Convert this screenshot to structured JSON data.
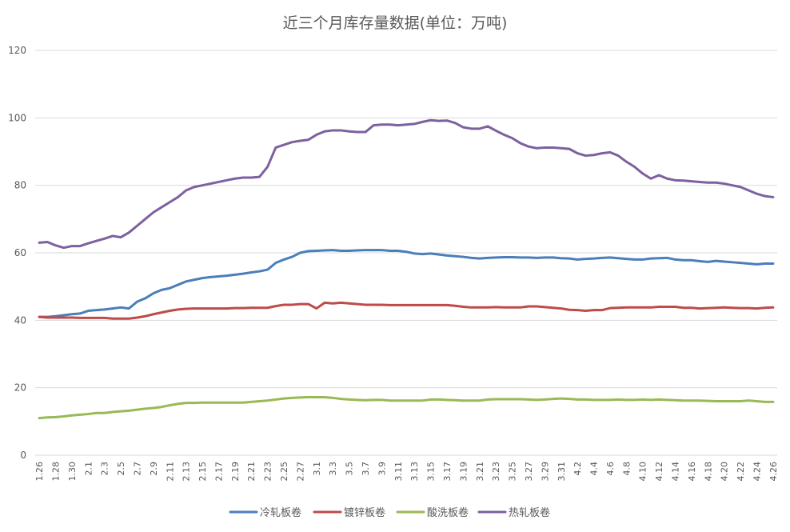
{
  "chart_data": {
    "type": "line",
    "title": "近三个月库存量数据(单位：万吨)",
    "xlabel": "",
    "ylabel": "",
    "ylim": [
      0,
      120
    ],
    "yticks": [
      0,
      20,
      40,
      60,
      80,
      100,
      120
    ],
    "grid": true,
    "legend_position": "bottom",
    "x": [
      "1.26",
      "1.27",
      "1.28",
      "1.29",
      "1.30",
      "1.31",
      "2.1",
      "2.2",
      "2.3",
      "2.4",
      "2.5",
      "2.6",
      "2.7",
      "2.8",
      "2.9",
      "2.10",
      "2.11",
      "2.12",
      "2.13",
      "2.14",
      "2.15",
      "2.16",
      "2.17",
      "2.18",
      "2.19",
      "2.20",
      "2.21",
      "2.22",
      "2.23",
      "2.24",
      "2.25",
      "2.26",
      "2.27",
      "2.28",
      "3.1",
      "3.2",
      "3.3",
      "3.4",
      "3.5",
      "3.6",
      "3.7",
      "3.8",
      "3.9",
      "3.10",
      "3.11",
      "3.12",
      "3.13",
      "3.14",
      "3.15",
      "3.16",
      "3.17",
      "3.18",
      "3.19",
      "3.20",
      "3.21",
      "3.22",
      "3.23",
      "3.24",
      "3.25",
      "3.26",
      "3.27",
      "3.28",
      "3.29",
      "3.30",
      "3.31",
      "4.1",
      "4.2",
      "4.3",
      "4.4",
      "4.5",
      "4.6",
      "4.7",
      "4.8",
      "4.9",
      "4.10",
      "4.11",
      "4.12",
      "4.13",
      "4.14",
      "4.15",
      "4.16",
      "4.17",
      "4.18",
      "4.19",
      "4.20",
      "4.21",
      "4.22",
      "4.23",
      "4.24",
      "4.25",
      "4.26"
    ],
    "xtick_labels": [
      "1.26",
      "1.28",
      "1.30",
      "2.1",
      "2.3",
      "2.5",
      "2.7",
      "2.9",
      "2.11",
      "2.13",
      "2.15",
      "2.17",
      "2.19",
      "2.21",
      "2.23",
      "2.25",
      "2.27",
      "3.1",
      "3.3",
      "3.5",
      "3.7",
      "3.9",
      "3.11",
      "3.13",
      "3.15",
      "3.17",
      "3.19",
      "3.21",
      "3.23",
      "3.25",
      "3.27",
      "3.29",
      "3.31",
      "4.2",
      "4.4",
      "4.6",
      "4.8",
      "4.10",
      "4.12",
      "4.14",
      "4.16",
      "4.18",
      "4.20",
      "4.22",
      "4.24",
      "4.26"
    ],
    "series": [
      {
        "name": "冷轧板卷",
        "color": "#4a7ebb",
        "values": [
          41,
          41,
          41.2,
          41.5,
          41.8,
          42,
          42.8,
          43,
          43.2,
          43.5,
          43.8,
          43.5,
          45.5,
          46.5,
          48,
          49,
          49.5,
          50.5,
          51.5,
          52,
          52.5,
          52.8,
          53,
          53.2,
          53.5,
          53.8,
          54.2,
          54.5,
          55,
          57,
          58,
          58.8,
          60,
          60.5,
          60.6,
          60.7,
          60.8,
          60.6,
          60.6,
          60.7,
          60.8,
          60.8,
          60.8,
          60.6,
          60.6,
          60.3,
          59.8,
          59.6,
          59.8,
          59.5,
          59.2,
          59,
          58.8,
          58.5,
          58.3,
          58.5,
          58.6,
          58.7,
          58.7,
          58.6,
          58.6,
          58.5,
          58.6,
          58.6,
          58.4,
          58.3,
          58,
          58.2,
          58.3,
          58.5,
          58.6,
          58.4,
          58.2,
          58,
          58,
          58.3,
          58.4,
          58.5,
          58,
          57.8,
          57.8,
          57.5,
          57.3,
          57.6,
          57.4,
          57.2,
          57,
          56.8,
          56.6,
          56.8,
          56.8
        ]
      },
      {
        "name": "镀锌板卷",
        "color": "#be4b48",
        "values": [
          41,
          40.8,
          40.8,
          40.8,
          40.8,
          40.7,
          40.7,
          40.7,
          40.7,
          40.5,
          40.5,
          40.5,
          40.8,
          41.2,
          41.8,
          42.3,
          42.8,
          43.2,
          43.4,
          43.5,
          43.5,
          43.5,
          43.5,
          43.5,
          43.6,
          43.6,
          43.7,
          43.7,
          43.7,
          44.2,
          44.6,
          44.6,
          44.8,
          44.8,
          43.5,
          45.2,
          45,
          45.2,
          45,
          44.8,
          44.6,
          44.6,
          44.6,
          44.5,
          44.5,
          44.5,
          44.5,
          44.5,
          44.5,
          44.5,
          44.5,
          44.3,
          44,
          43.8,
          43.8,
          43.8,
          43.9,
          43.8,
          43.8,
          43.8,
          44.1,
          44.1,
          43.9,
          43.7,
          43.5,
          43.1,
          43,
          42.8,
          43,
          43,
          43.6,
          43.7,
          43.8,
          43.8,
          43.8,
          43.8,
          44,
          44,
          44,
          43.7,
          43.7,
          43.5,
          43.6,
          43.7,
          43.8,
          43.7,
          43.6,
          43.6,
          43.5,
          43.7,
          43.8
        ]
      },
      {
        "name": "酸洗板卷",
        "color": "#98b954",
        "values": [
          11,
          11.2,
          11.3,
          11.5,
          11.8,
          12,
          12.2,
          12.5,
          12.5,
          12.8,
          13,
          13.2,
          13.5,
          13.8,
          14,
          14.3,
          14.8,
          15.2,
          15.5,
          15.5,
          15.6,
          15.6,
          15.6,
          15.6,
          15.6,
          15.6,
          15.8,
          16,
          16.2,
          16.5,
          16.8,
          17,
          17.1,
          17.2,
          17.2,
          17.2,
          17,
          16.7,
          16.5,
          16.4,
          16.3,
          16.4,
          16.4,
          16.2,
          16.2,
          16.2,
          16.2,
          16.2,
          16.5,
          16.5,
          16.4,
          16.3,
          16.2,
          16.2,
          16.2,
          16.5,
          16.6,
          16.6,
          16.6,
          16.6,
          16.5,
          16.4,
          16.5,
          16.7,
          16.8,
          16.7,
          16.5,
          16.5,
          16.4,
          16.4,
          16.4,
          16.5,
          16.4,
          16.4,
          16.5,
          16.4,
          16.5,
          16.4,
          16.3,
          16.2,
          16.2,
          16.2,
          16.1,
          16,
          16,
          16,
          16,
          16.2,
          16,
          15.8,
          15.8
        ]
      },
      {
        "name": "热轧板卷",
        "color": "#7d60a0",
        "values": [
          63,
          63.2,
          62.2,
          61.5,
          62,
          62,
          62.8,
          63.5,
          64.2,
          65,
          64.6,
          66,
          68,
          70,
          72,
          73.5,
          75,
          76.5,
          78.5,
          79.5,
          80,
          80.5,
          81,
          81.5,
          82,
          82.3,
          82.3,
          82.5,
          85.5,
          91.2,
          92,
          92.8,
          93.2,
          93.5,
          95,
          96,
          96.3,
          96.3,
          96,
          95.8,
          95.8,
          97.8,
          98,
          98,
          97.8,
          98,
          98.2,
          98.8,
          99.3,
          99.1,
          99.2,
          98.5,
          97.2,
          96.8,
          96.8,
          97.5,
          96.2,
          95,
          94,
          92.5,
          91.5,
          91,
          91.2,
          91.2,
          91,
          90.8,
          89.5,
          88.8,
          89,
          89.5,
          89.8,
          88.8,
          87,
          85.5,
          83.5,
          82,
          83,
          82,
          81.5,
          81.4,
          81.2,
          81,
          80.8,
          80.8,
          80.5,
          80,
          79.5,
          78.5,
          77.5,
          76.8,
          76.5
        ]
      }
    ]
  }
}
